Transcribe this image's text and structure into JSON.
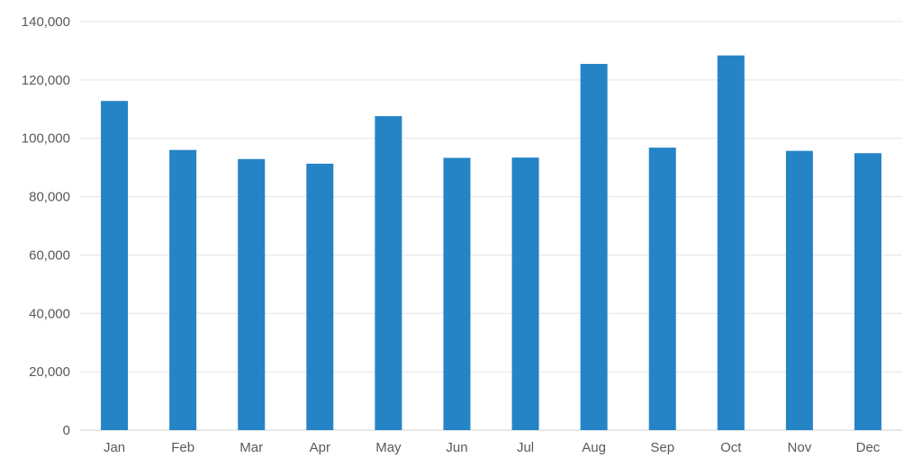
{
  "chart_data": {
    "type": "bar",
    "title": "",
    "xlabel": "",
    "ylabel": "",
    "categories": [
      "Jan",
      "Feb",
      "Mar",
      "Apr",
      "May",
      "Jun",
      "Jul",
      "Aug",
      "Sep",
      "Oct",
      "Nov",
      "Dec"
    ],
    "values": [
      112800,
      96000,
      92900,
      91300,
      107600,
      93300,
      93400,
      125500,
      96800,
      128400,
      95700,
      94900
    ],
    "ylim": [
      0,
      140000
    ],
    "yticks": [
      0,
      20000,
      40000,
      60000,
      80000,
      100000,
      120000,
      140000
    ],
    "ytick_labels": [
      "0",
      "20,000",
      "40,000",
      "60,000",
      "80,000",
      "100,000",
      "120,000",
      "140,000"
    ],
    "grid": true,
    "legend": "none",
    "bar_color": "#2584C6"
  }
}
